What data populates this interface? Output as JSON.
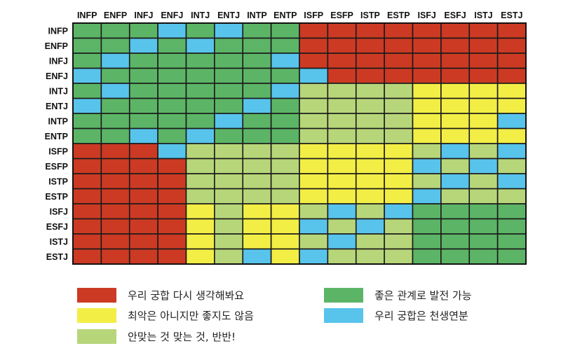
{
  "chart_data": {
    "type": "heatmap",
    "columns": [
      "INFP",
      "ENFP",
      "INFJ",
      "ENFJ",
      "INTJ",
      "ENTJ",
      "INTP",
      "ENTP",
      "ISFP",
      "ESFP",
      "ISTP",
      "ESTP",
      "ISFJ",
      "ESFJ",
      "ISTJ",
      "ESTJ"
    ],
    "rows": [
      "INFP",
      "ENFP",
      "INFJ",
      "ENFJ",
      "INTJ",
      "ENTJ",
      "INTP",
      "ENTP",
      "ISFP",
      "ESFP",
      "ISTP",
      "ESTP",
      "ISFJ",
      "ESFJ",
      "ISTJ",
      "ESTJ"
    ],
    "categories": {
      "R": {
        "label": "우리 궁합 다시 생각해봐요",
        "color": "#cc3a24"
      },
      "Y": {
        "label": "최악은 아니지만 좋지도 않음",
        "color": "#f3ee45"
      },
      "L": {
        "label": "안맞는 것 맞는 것, 반반!",
        "color": "#b7d67a"
      },
      "G": {
        "label": "좋은 관계로 발전 가능",
        "color": "#5cb566"
      },
      "B": {
        "label": "우리 궁합은 천생연분",
        "color": "#58c4ec"
      }
    },
    "legend_order": [
      "R",
      "G",
      "Y",
      "B",
      "L"
    ],
    "matrix": [
      "GGGBGBGGRRRRRRRR",
      "GGBGBGGGRRRRRRRR",
      "GBGGGGGBRRRRRRRR",
      "BGGGGGGGBRRRRRRR",
      "GBGGGGGBLLLLYYYY",
      "BGGGGGBGLLLLYYYY",
      "GGGGGBGGLLLLYYYB",
      "GGBGBGGGLLLLYYYY",
      "RRRBLLLLYYYYLBLB",
      "RRRRLLLLYYYYBLBL",
      "RRRRLLLLYYYYLBLB",
      "RRRRLLLLYYYYBLLL",
      "RRRRYLYYLBLBGGGG",
      "RRRRYLYYBLBLGGGG",
      "RRRRYLYYLBLLGGGG",
      "RRRRYLBYBLLLGGGG"
    ]
  }
}
